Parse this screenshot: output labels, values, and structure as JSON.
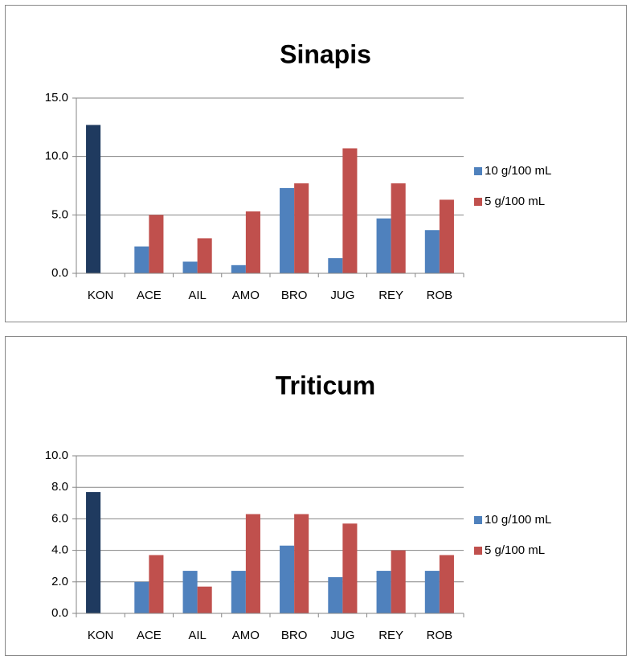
{
  "chart_data": [
    {
      "type": "bar",
      "title": "Sinapis",
      "categories": [
        "KON",
        "ACE",
        "AIL",
        "AMO",
        "BRO",
        "JUG",
        "REY",
        "ROB"
      ],
      "series": [
        {
          "name": "10 g/100 mL",
          "color": "#4f81bd",
          "point_colors": [
            "#1f3a5f",
            "#4f81bd",
            "#4f81bd",
            "#4f81bd",
            "#4f81bd",
            "#4f81bd",
            "#4f81bd",
            "#4f81bd"
          ],
          "values": [
            12.7,
            2.3,
            1.0,
            0.7,
            7.3,
            1.3,
            4.7,
            3.7
          ]
        },
        {
          "name": "5 g/100 mL",
          "color": "#c0504d",
          "values": [
            null,
            5.0,
            3.0,
            5.3,
            7.7,
            10.7,
            7.7,
            6.3
          ]
        }
      ],
      "ylim": [
        0,
        15
      ],
      "yticks": [
        {
          "value": 0,
          "label": "0.0"
        },
        {
          "value": 5,
          "label": "5.0"
        },
        {
          "value": 10,
          "label": "10.0"
        },
        {
          "value": 15,
          "label": "15.0"
        }
      ],
      "grid": true,
      "legend": "right"
    },
    {
      "type": "bar",
      "title": "Triticum",
      "categories": [
        "KON",
        "ACE",
        "AIL",
        "AMO",
        "BRO",
        "JUG",
        "REY",
        "ROB"
      ],
      "series": [
        {
          "name": "10 g/100 mL",
          "color": "#4f81bd",
          "point_colors": [
            "#1f3a5f",
            "#4f81bd",
            "#4f81bd",
            "#4f81bd",
            "#4f81bd",
            "#4f81bd",
            "#4f81bd",
            "#4f81bd"
          ],
          "values": [
            7.7,
            2.0,
            2.7,
            2.7,
            4.3,
            2.3,
            2.7,
            2.7
          ]
        },
        {
          "name": "5 g/100 mL",
          "color": "#c0504d",
          "values": [
            null,
            3.7,
            1.7,
            6.3,
            6.3,
            5.7,
            4.0,
            3.7
          ]
        }
      ],
      "ylim": [
        0,
        10
      ],
      "yticks": [
        {
          "value": 0,
          "label": "0.0"
        },
        {
          "value": 2,
          "label": "2.0"
        },
        {
          "value": 4,
          "label": "4.0"
        },
        {
          "value": 6,
          "label": "6.0"
        },
        {
          "value": 8,
          "label": "8.0"
        },
        {
          "value": 10,
          "label": "10.0"
        }
      ],
      "grid": true,
      "legend": "right"
    }
  ]
}
